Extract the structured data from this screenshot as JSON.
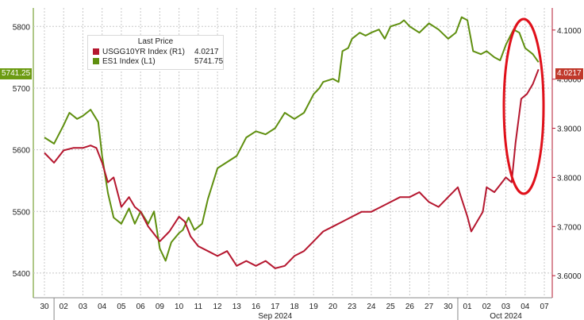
{
  "colors": {
    "series_1": "#b5172f",
    "series_2": "#5f8f0f",
    "highlight": "#e0101a",
    "grid": "#c8c8c8"
  },
  "legend": {
    "title": "Last Price",
    "items": [
      {
        "name": "USGG10YR Index  (R1)",
        "value": "4.0217"
      },
      {
        "name": "ES1 Index  (L1)",
        "value": "5741.75"
      }
    ]
  },
  "tags": {
    "left": "5741.25",
    "right": "4.0217"
  },
  "annotation": "red ellipse highlighting Oct 03–07 surge",
  "chart_data": {
    "type": "line",
    "title": "",
    "x_tick_labels": [
      "30",
      "02",
      "03",
      "04",
      "05",
      "06",
      "09",
      "10",
      "11",
      "12",
      "13",
      "16",
      "17",
      "18",
      "19",
      "20",
      "23",
      "24",
      "25",
      "26",
      "27",
      "30",
      "01",
      "02",
      "03",
      "04",
      "07"
    ],
    "month_labels": [
      {
        "label": "Sep 2024",
        "at_tick": "17"
      },
      {
        "label": "Oct 2024",
        "at_tick": "03"
      }
    ],
    "left_axis": {
      "ticks": [
        5400,
        5500,
        5600,
        5700,
        5800
      ],
      "range": [
        5360,
        5830
      ]
    },
    "right_axis": {
      "ticks": [
        3.6,
        3.7,
        3.8,
        3.9,
        4.0,
        4.1
      ],
      "range": [
        3.555,
        4.145
      ]
    },
    "series": [
      {
        "name": "ES1 Index",
        "axis": "left",
        "color": "#5f8f0f",
        "points": [
          [
            0,
            5620
          ],
          [
            0.5,
            5610
          ],
          [
            1,
            5640
          ],
          [
            1.3,
            5660
          ],
          [
            1.7,
            5650
          ],
          [
            2,
            5655
          ],
          [
            2.4,
            5665
          ],
          [
            2.8,
            5645
          ],
          [
            3,
            5590
          ],
          [
            3.3,
            5530
          ],
          [
            3.6,
            5490
          ],
          [
            4,
            5480
          ],
          [
            4.4,
            5505
          ],
          [
            4.7,
            5480
          ],
          [
            5,
            5500
          ],
          [
            5.4,
            5480
          ],
          [
            5.7,
            5500
          ],
          [
            6,
            5440
          ],
          [
            6.3,
            5420
          ],
          [
            6.6,
            5450
          ],
          [
            7,
            5465
          ],
          [
            7.2,
            5470
          ],
          [
            7.5,
            5490
          ],
          [
            7.8,
            5470
          ],
          [
            8.2,
            5480
          ],
          [
            8.5,
            5520
          ],
          [
            9,
            5570
          ],
          [
            9.5,
            5580
          ],
          [
            10,
            5590
          ],
          [
            10.5,
            5620
          ],
          [
            11,
            5630
          ],
          [
            11.5,
            5625
          ],
          [
            12,
            5635
          ],
          [
            12.5,
            5660
          ],
          [
            13,
            5650
          ],
          [
            13.5,
            5660
          ],
          [
            14,
            5690
          ],
          [
            14.3,
            5700
          ],
          [
            14.5,
            5710
          ],
          [
            15,
            5715
          ],
          [
            15.3,
            5710
          ],
          [
            15.5,
            5760
          ],
          [
            15.8,
            5765
          ],
          [
            16,
            5780
          ],
          [
            16.4,
            5790
          ],
          [
            16.7,
            5785
          ],
          [
            17,
            5790
          ],
          [
            17.4,
            5795
          ],
          [
            17.7,
            5780
          ],
          [
            18,
            5800
          ],
          [
            18.5,
            5805
          ],
          [
            18.7,
            5810
          ],
          [
            19,
            5800
          ],
          [
            19.5,
            5790
          ],
          [
            20,
            5805
          ],
          [
            20.5,
            5795
          ],
          [
            21,
            5780
          ],
          [
            21.4,
            5790
          ],
          [
            21.7,
            5815
          ],
          [
            22,
            5810
          ],
          [
            22.3,
            5760
          ],
          [
            22.7,
            5755
          ],
          [
            23,
            5760
          ],
          [
            23.4,
            5750
          ],
          [
            23.7,
            5745
          ],
          [
            24,
            5770
          ],
          [
            24.4,
            5795
          ],
          [
            24.7,
            5790
          ],
          [
            25,
            5765
          ],
          [
            25.4,
            5755
          ],
          [
            25.7,
            5742
          ]
        ]
      },
      {
        "name": "USGG10YR Index",
        "axis": "right",
        "color": "#b5172f",
        "points": [
          [
            0,
            3.85
          ],
          [
            0.5,
            3.83
          ],
          [
            1,
            3.855
          ],
          [
            1.5,
            3.86
          ],
          [
            2,
            3.86
          ],
          [
            2.4,
            3.865
          ],
          [
            2.7,
            3.86
          ],
          [
            3,
            3.83
          ],
          [
            3.3,
            3.79
          ],
          [
            3.6,
            3.8
          ],
          [
            4,
            3.74
          ],
          [
            4.4,
            3.76
          ],
          [
            4.7,
            3.74
          ],
          [
            5,
            3.73
          ],
          [
            5.4,
            3.7
          ],
          [
            6,
            3.67
          ],
          [
            6.5,
            3.69
          ],
          [
            7,
            3.72
          ],
          [
            7.3,
            3.71
          ],
          [
            7.6,
            3.68
          ],
          [
            8,
            3.66
          ],
          [
            8.5,
            3.65
          ],
          [
            9,
            3.64
          ],
          [
            9.5,
            3.65
          ],
          [
            10,
            3.62
          ],
          [
            10.5,
            3.63
          ],
          [
            11,
            3.62
          ],
          [
            11.5,
            3.63
          ],
          [
            12,
            3.615
          ],
          [
            12.5,
            3.62
          ],
          [
            13,
            3.64
          ],
          [
            13.5,
            3.65
          ],
          [
            14,
            3.67
          ],
          [
            14.5,
            3.69
          ],
          [
            15,
            3.7
          ],
          [
            15.5,
            3.71
          ],
          [
            16,
            3.72
          ],
          [
            16.5,
            3.73
          ],
          [
            17,
            3.73
          ],
          [
            17.5,
            3.74
          ],
          [
            18,
            3.75
          ],
          [
            18.5,
            3.76
          ],
          [
            19,
            3.76
          ],
          [
            19.5,
            3.77
          ],
          [
            20,
            3.75
          ],
          [
            20.5,
            3.74
          ],
          [
            21,
            3.76
          ],
          [
            21.5,
            3.78
          ],
          [
            22,
            3.72
          ],
          [
            22.2,
            3.69
          ],
          [
            22.5,
            3.71
          ],
          [
            22.8,
            3.73
          ],
          [
            23,
            3.78
          ],
          [
            23.4,
            3.77
          ],
          [
            23.7,
            3.785
          ],
          [
            24,
            3.8
          ],
          [
            24.3,
            3.79
          ],
          [
            24.5,
            3.87
          ],
          [
            24.8,
            3.96
          ],
          [
            25.1,
            3.97
          ],
          [
            25.4,
            3.99
          ],
          [
            25.7,
            4.02
          ]
        ]
      }
    ]
  }
}
